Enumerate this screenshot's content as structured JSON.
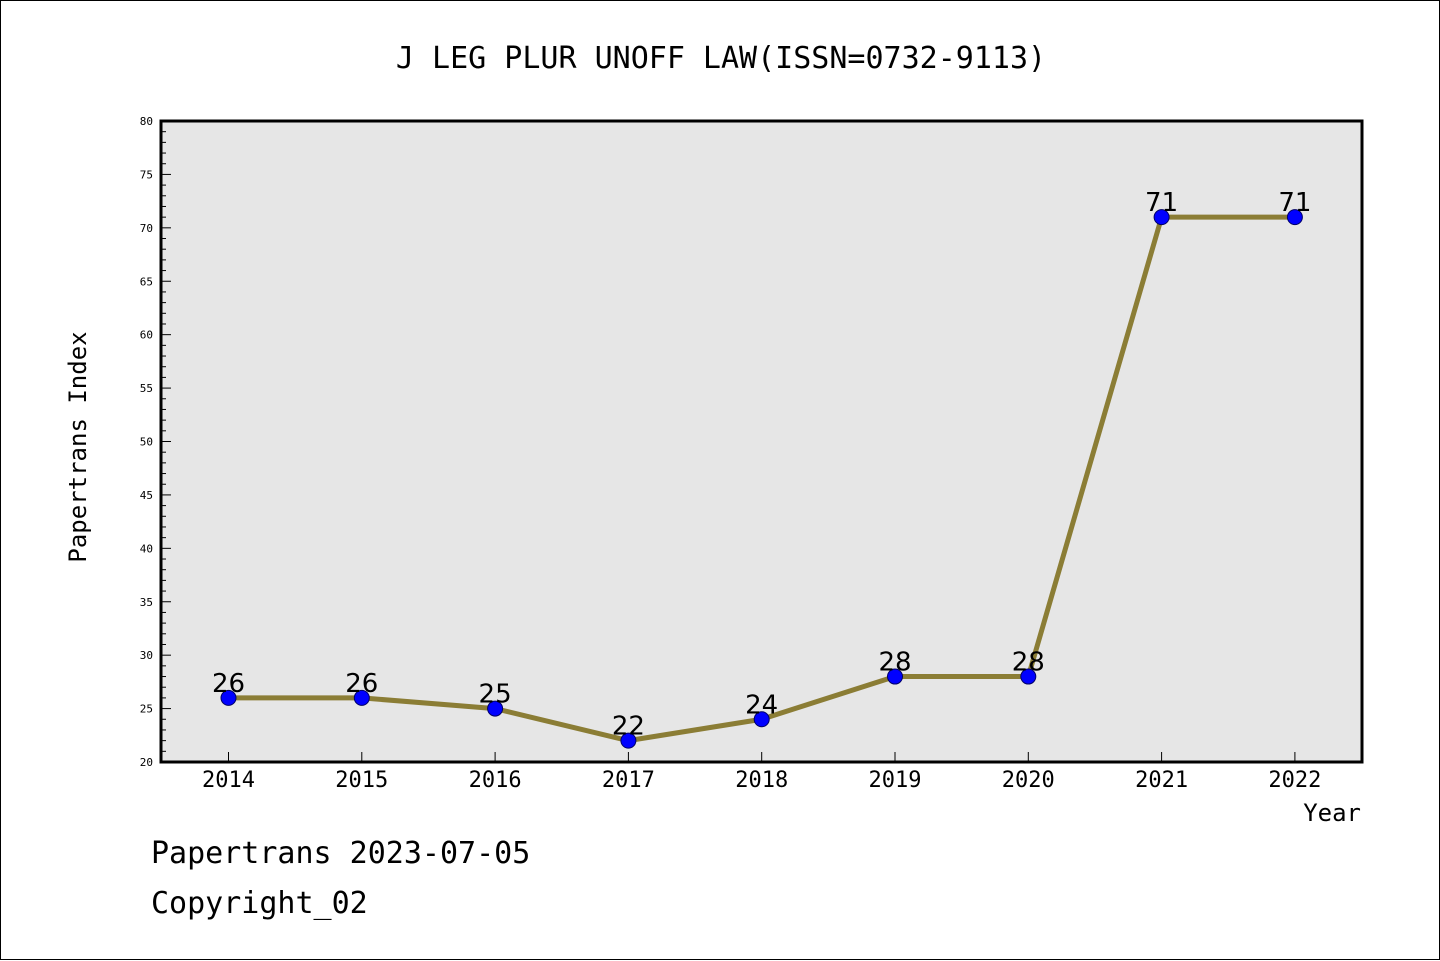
{
  "colors": {
    "background": "#ffffff",
    "plot_background": "#e6e6e6",
    "line": "#8b7d35",
    "marker": "#0000ff",
    "marker_edge": "#000066",
    "axis": "#000000"
  },
  "footer": {
    "date_line": "Papertrans 2023-07-05",
    "copyright_line": "Copyright_02"
  },
  "chart_data": {
    "type": "line",
    "title": "J LEG PLUR UNOFF LAW(ISSN=0732-9113)",
    "xlabel": "Year",
    "ylabel": "Papertrans Index",
    "categories": [
      "2014",
      "2015",
      "2016",
      "2017",
      "2018",
      "2019",
      "2020",
      "2021",
      "2022"
    ],
    "values": [
      26,
      26,
      25,
      22,
      24,
      28,
      28,
      71,
      71
    ],
    "data_labels": [
      "26",
      "26",
      "25",
      "22",
      "24",
      "28",
      "28",
      "71",
      "71"
    ],
    "ylim": [
      20,
      80
    ],
    "y_ticks": [
      "20",
      "25",
      "30",
      "35",
      "40",
      "45",
      "50",
      "55",
      "60",
      "65",
      "70",
      "75",
      "80"
    ],
    "grid": false,
    "legend": "none"
  }
}
